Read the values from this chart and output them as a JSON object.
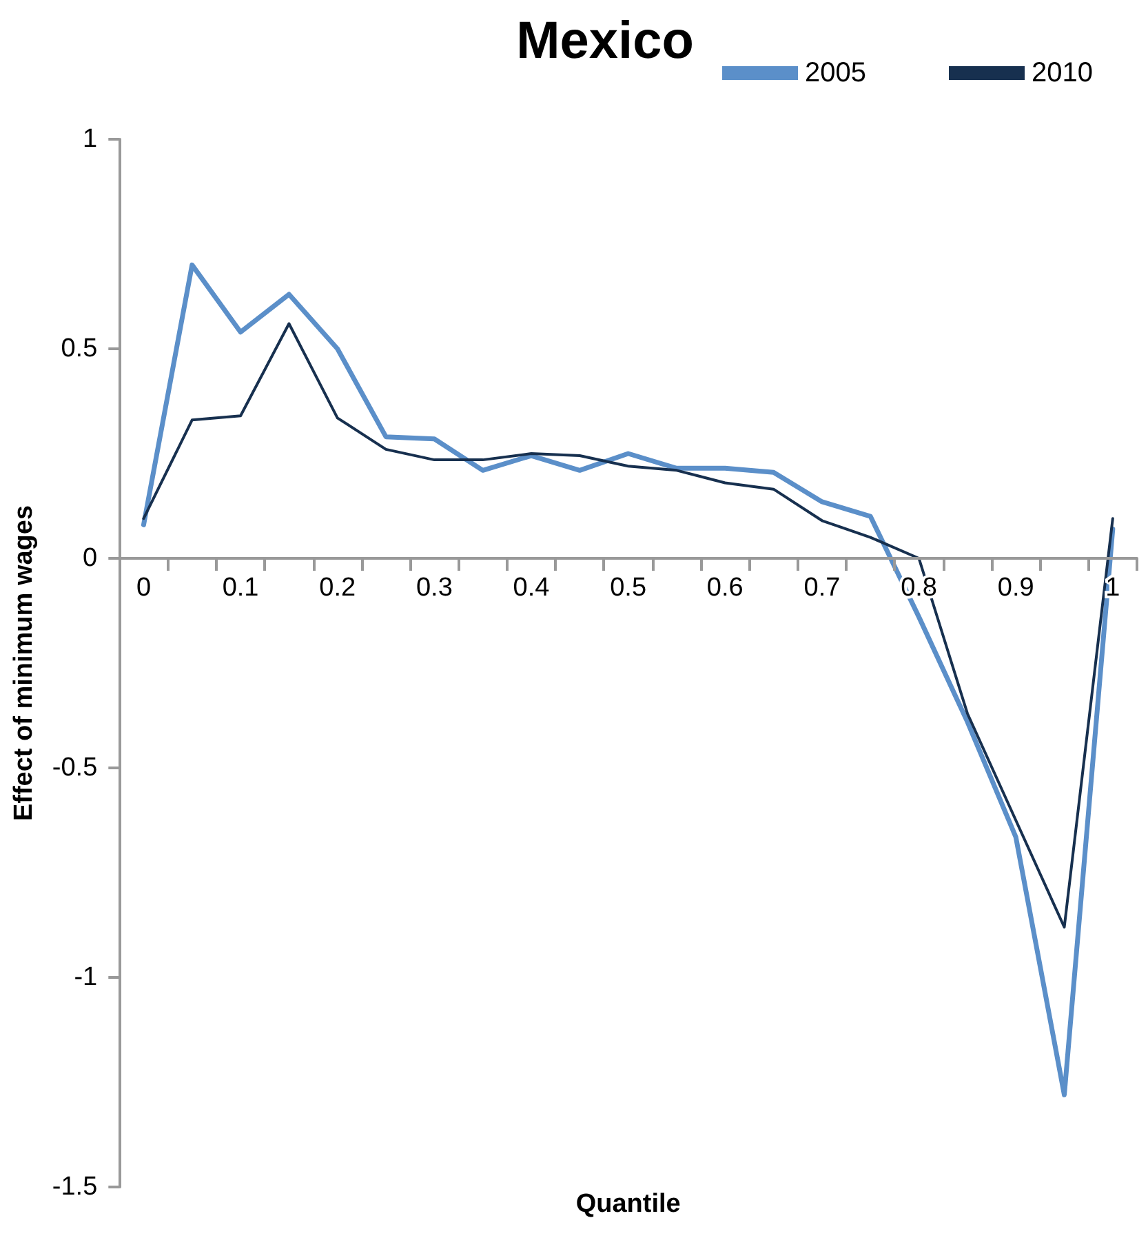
{
  "chart_data": {
    "type": "line",
    "title": "Mexico",
    "xlabel": "Quantile",
    "ylabel": "Effect of minimum wages",
    "categories": [
      "0",
      null,
      "0.1",
      null,
      "0.2",
      null,
      "0.3",
      null,
      "0.4",
      null,
      "0.5",
      null,
      "0.6",
      null,
      "0.7",
      null,
      "0.8",
      null,
      "0.9",
      null,
      "1"
    ],
    "series": [
      {
        "name": "2005",
        "color": "#5b8fc9",
        "values": [
          0.08,
          0.7,
          0.54,
          0.63,
          0.5,
          0.29,
          0.285,
          0.21,
          0.245,
          0.21,
          0.25,
          0.215,
          0.215,
          0.205,
          0.135,
          0.1,
          -0.14,
          -0.39,
          -0.665,
          -1.28,
          0.07
        ]
      },
      {
        "name": "2010",
        "color": "#17304f",
        "values": [
          0.095,
          0.33,
          0.34,
          0.56,
          0.335,
          0.26,
          0.235,
          0.235,
          0.25,
          0.245,
          0.22,
          0.21,
          0.18,
          0.165,
          0.09,
          0.05,
          0.0,
          -0.37,
          -0.625,
          -0.88,
          0.095
        ]
      }
    ],
    "ylim": [
      -1.5,
      1
    ],
    "yticks": [
      -1.5,
      -1,
      -0.5,
      0,
      0.5,
      1
    ],
    "grid": false,
    "legend": "top right",
    "marker": "none",
    "line_style": "solid"
  }
}
